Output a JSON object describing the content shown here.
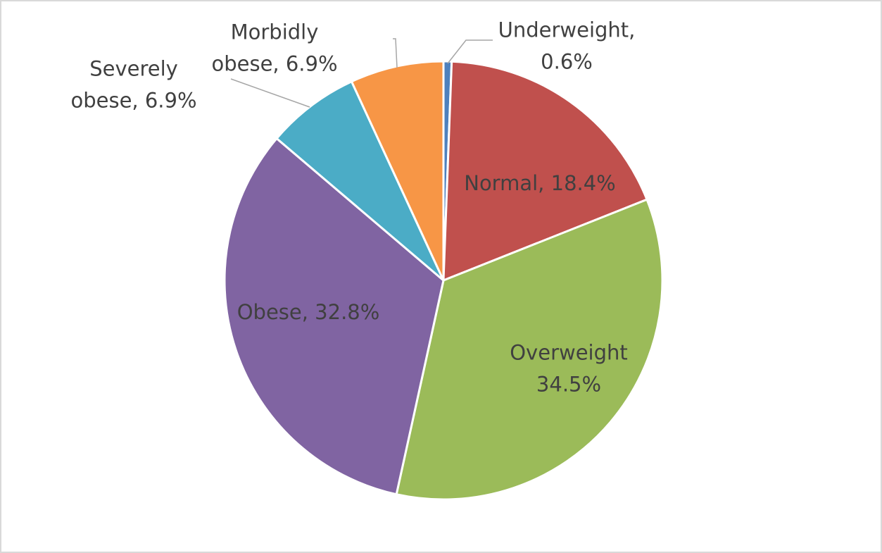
{
  "chart_data": {
    "type": "pie",
    "values": [
      0.6,
      18.4,
      34.5,
      32.8,
      6.9,
      6.9
    ],
    "value_labels": [
      "Underweight,\n0.6%",
      "Normal, 18.4%",
      "Overweight\n34.5%",
      "Obese, 32.8%",
      "Severely\nobese, 6.9%",
      "Morbidly\nobese, 6.9%"
    ],
    "colors": [
      "#4f81bd",
      "#c0504d",
      "#9bbb59",
      "#8064a2",
      "#4bacc6",
      "#f79646"
    ]
  }
}
